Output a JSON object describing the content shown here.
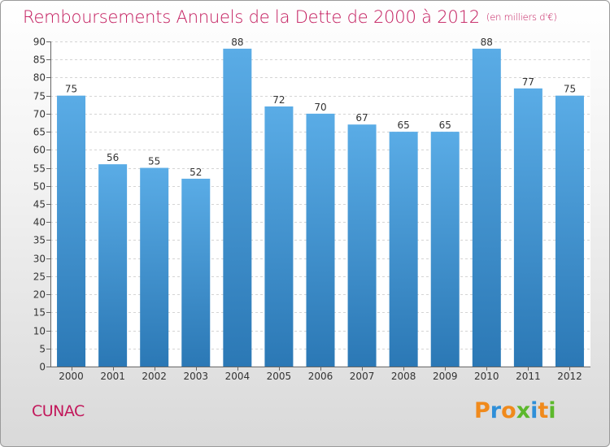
{
  "header": {
    "title": "Remboursements Annuels de la Dette de 2000 à 2012",
    "unit": "(en milliers d'€)"
  },
  "footer": {
    "commune": "CUNAC",
    "brand": "Proxiti"
  },
  "colors": {
    "title": "#c2185b",
    "bar_top": "#5aace6",
    "bar_bottom": "#2b78b5",
    "brand_letters": [
      "#f08a1c",
      "#2f8fd8",
      "#f08a1c",
      "#5cb82c",
      "#2f8fd8",
      "#f08a1c",
      "#5cb82c"
    ]
  },
  "chart_data": {
    "type": "bar",
    "title": "Remboursements Annuels de la Dette de 2000 à 2012",
    "subtitle": "(en milliers d'€)",
    "xlabel": "",
    "ylabel": "",
    "categories": [
      "2000",
      "2001",
      "2002",
      "2003",
      "2004",
      "2005",
      "2006",
      "2007",
      "2008",
      "2009",
      "2010",
      "2011",
      "2012"
    ],
    "values": [
      75,
      56,
      55,
      52,
      88,
      72,
      70,
      67,
      65,
      65,
      88,
      77,
      75
    ],
    "ylim": [
      0,
      90
    ],
    "yticks": [
      0,
      5,
      10,
      15,
      20,
      25,
      30,
      35,
      40,
      45,
      50,
      55,
      60,
      65,
      70,
      75,
      80,
      85,
      90
    ],
    "grid": "horizontal",
    "data_labels": true
  }
}
